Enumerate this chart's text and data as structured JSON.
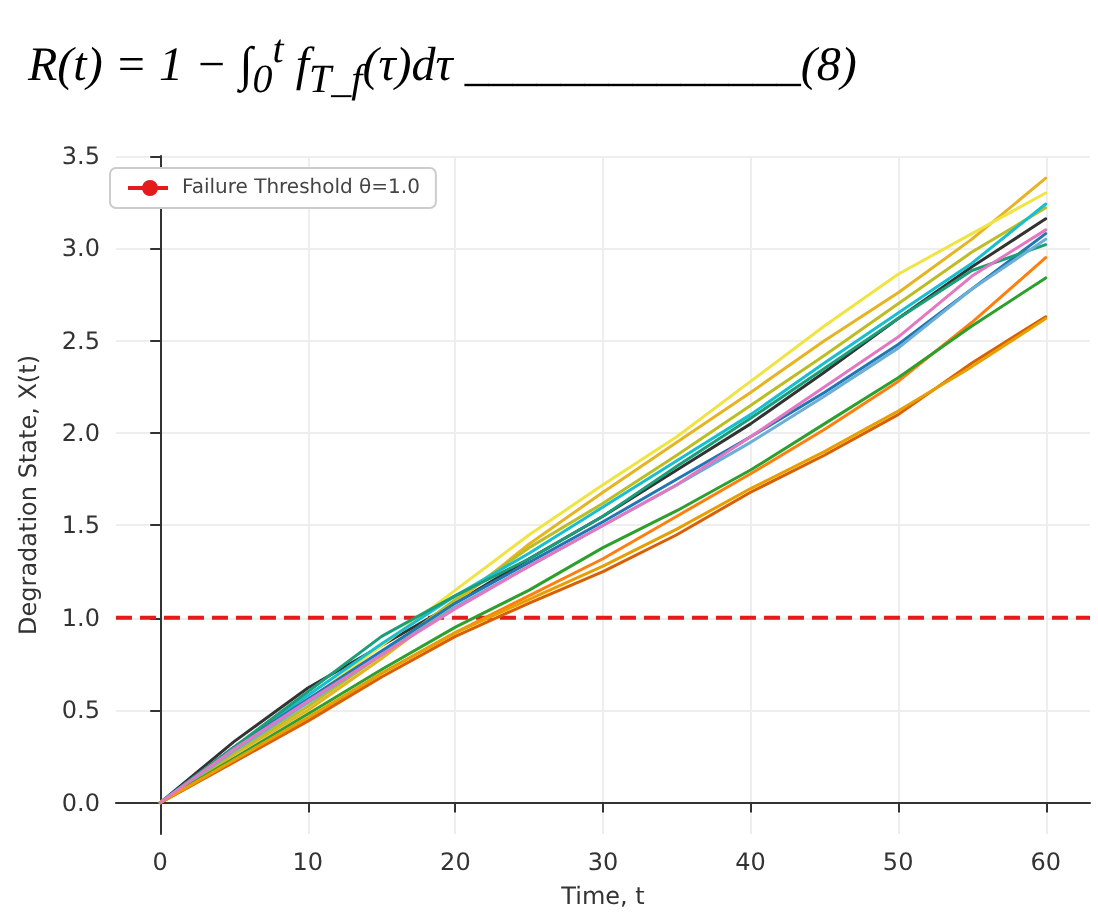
{
  "chart_data": {
    "type": "line",
    "title": "R(t) = 1 − ∫$_{0}$$^{t}$ f$_{T_f}$(τ)dτ ______________(8)",
    "xlabel": "Time, t",
    "ylabel": "Degradation State, X(t)",
    "x": [
      0,
      5,
      10,
      15,
      20,
      25,
      30,
      35,
      40,
      45,
      50,
      55,
      60
    ],
    "series": [
      {
        "color": "#333333",
        "values": [
          0,
          0.33,
          0.62,
          0.85,
          1.08,
          1.32,
          1.55,
          1.8,
          2.05,
          2.33,
          2.62,
          2.9,
          3.16
        ]
      },
      {
        "color": "#e6b422",
        "values": [
          0,
          0.26,
          0.5,
          0.78,
          1.08,
          1.4,
          1.68,
          1.95,
          2.22,
          2.5,
          2.76,
          3.05,
          3.38
        ]
      },
      {
        "color": "#f0e442",
        "values": [
          0,
          0.28,
          0.55,
          0.85,
          1.15,
          1.45,
          1.72,
          1.98,
          2.28,
          2.58,
          2.86,
          3.08,
          3.3
        ]
      },
      {
        "color": "#bcbd22",
        "values": [
          0,
          0.27,
          0.52,
          0.8,
          1.1,
          1.38,
          1.62,
          1.88,
          2.15,
          2.42,
          2.7,
          2.98,
          3.22
        ]
      },
      {
        "color": "#17becf",
        "values": [
          0,
          0.3,
          0.58,
          0.86,
          1.12,
          1.35,
          1.6,
          1.85,
          2.1,
          2.38,
          2.65,
          2.92,
          3.24
        ]
      },
      {
        "color": "#1f77b4",
        "values": [
          0,
          0.3,
          0.56,
          0.82,
          1.08,
          1.3,
          1.52,
          1.75,
          1.98,
          2.22,
          2.48,
          2.78,
          3.08
        ]
      },
      {
        "color": "#1a9e77",
        "values": [
          0,
          0.3,
          0.6,
          0.9,
          1.12,
          1.32,
          1.55,
          1.82,
          2.08,
          2.35,
          2.62,
          2.88,
          3.02
        ]
      },
      {
        "color": "#6baed6",
        "values": [
          0,
          0.28,
          0.54,
          0.8,
          1.06,
          1.28,
          1.5,
          1.72,
          1.95,
          2.2,
          2.46,
          2.78,
          3.05
        ]
      },
      {
        "color": "#ff7f0e",
        "values": [
          0,
          0.22,
          0.45,
          0.7,
          0.92,
          1.12,
          1.32,
          1.55,
          1.78,
          2.02,
          2.28,
          2.6,
          2.95
        ]
      },
      {
        "color": "#2ca02c",
        "values": [
          0,
          0.24,
          0.48,
          0.72,
          0.95,
          1.15,
          1.38,
          1.58,
          1.8,
          2.05,
          2.3,
          2.58,
          2.84
        ]
      },
      {
        "color": "#d95f02",
        "values": [
          0,
          0.22,
          0.44,
          0.68,
          0.9,
          1.08,
          1.25,
          1.45,
          1.68,
          1.88,
          2.1,
          2.38,
          2.63
        ]
      },
      {
        "color": "#e69f00",
        "values": [
          0,
          0.23,
          0.46,
          0.7,
          0.92,
          1.1,
          1.28,
          1.48,
          1.7,
          1.9,
          2.12,
          2.36,
          2.62
        ]
      },
      {
        "color": "#e377c2",
        "values": [
          0,
          0.29,
          0.55,
          0.8,
          1.05,
          1.28,
          1.5,
          1.72,
          1.98,
          2.25,
          2.52,
          2.85,
          3.1
        ]
      }
    ],
    "ref_lines": [
      {
        "axis": "y",
        "value": 1.0,
        "label": "Failure Threshold θ=1.0",
        "color": "#e41a1c",
        "line_style": "dashed"
      }
    ],
    "xlim": [
      -3,
      63
    ],
    "xticks": [
      0,
      10,
      20,
      30,
      40,
      50,
      60
    ],
    "ylim": [
      -0.17,
      3.5
    ],
    "yticks": [
      {
        "value": 0,
        "label": "0.0"
      },
      0.5,
      {
        "value": 1,
        "label": "1.0"
      },
      1.5,
      {
        "value": 2,
        "label": "2.0"
      },
      2.5,
      {
        "value": 3,
        "label": "3.0"
      },
      3.5
    ],
    "grid": true,
    "legend": "top left",
    "marker": "none",
    "line_style": "solid"
  }
}
